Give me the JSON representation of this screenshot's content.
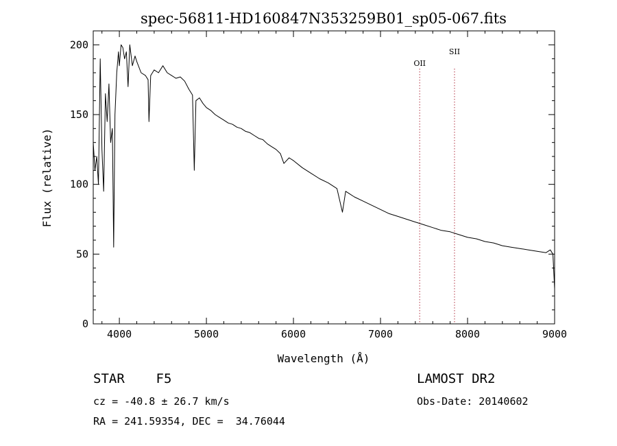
{
  "chart_data": {
    "type": "line",
    "title": "spec-56811-HD160847N353259B01_sp05-067.fits",
    "xlabel": "Wavelength (Å)",
    "ylabel": "Flux (relative)",
    "xlim": [
      3700,
      9000
    ],
    "ylim": [
      0,
      210
    ],
    "xticks": [
      "4000",
      "5000",
      "6000",
      "7000",
      "8000",
      "9000"
    ],
    "yticks": [
      "0",
      "50",
      "100",
      "150",
      "200"
    ],
    "grid": false,
    "series": [
      {
        "x": [
          3700,
          3720,
          3740,
          3760,
          3780,
          3800,
          3820,
          3840,
          3860,
          3880,
          3900,
          3920,
          3935,
          3950,
          3970,
          3990,
          4000,
          4020,
          4040,
          4060,
          4080,
          4100,
          4120,
          4150,
          4180,
          4200,
          4250,
          4300,
          4330,
          4340,
          4360,
          4400,
          4450,
          4500,
          4550,
          4600,
          4650,
          4700,
          4750,
          4800,
          4840,
          4861,
          4880,
          4920,
          4960,
          5000,
          5050,
          5100,
          5150,
          5200,
          5250,
          5300,
          5350,
          5400,
          5450,
          5500,
          5550,
          5600,
          5650,
          5700,
          5750,
          5800,
          5850,
          5890,
          5950,
          6000,
          6100,
          6200,
          6300,
          6400,
          6500,
          6563,
          6600,
          6700,
          6800,
          6900,
          7000,
          7100,
          7200,
          7300,
          7400,
          7500,
          7600,
          7700,
          7800,
          7900,
          8000,
          8100,
          8200,
          8300,
          8400,
          8500,
          8600,
          8700,
          8800,
          8900,
          8950,
          8980,
          9000
        ],
        "y": [
          130,
          110,
          120,
          100,
          190,
          125,
          95,
          165,
          145,
          172,
          130,
          140,
          55,
          150,
          180,
          195,
          185,
          200,
          198,
          190,
          195,
          170,
          200,
          185,
          192,
          188,
          180,
          178,
          175,
          145,
          178,
          182,
          180,
          185,
          180,
          178,
          176,
          177,
          174,
          168,
          164,
          110,
          160,
          162,
          158,
          155,
          153,
          150,
          148,
          146,
          144,
          143,
          141,
          140,
          138,
          137,
          135,
          133,
          132,
          129,
          127,
          125,
          122,
          115,
          119,
          117,
          112,
          108,
          104,
          101,
          97,
          80,
          95,
          91,
          88,
          85,
          82,
          79,
          77,
          75,
          73,
          71,
          69,
          67,
          66,
          64,
          62,
          61,
          59,
          58,
          56,
          55,
          54,
          53,
          52,
          51,
          53,
          50,
          25
        ]
      }
    ],
    "lines": [
      {
        "label": "OII",
        "x": 7450
      },
      {
        "label": "SII",
        "x": 7850
      }
    ]
  },
  "info": {
    "object": "STAR    F5",
    "survey": "LAMOST DR2",
    "cz": "cz = -40.8 ± 26.7 km/s",
    "obsdate": "Obs-Date: 20140602",
    "coords": "RA = 241.59354, DEC =  34.76044"
  }
}
